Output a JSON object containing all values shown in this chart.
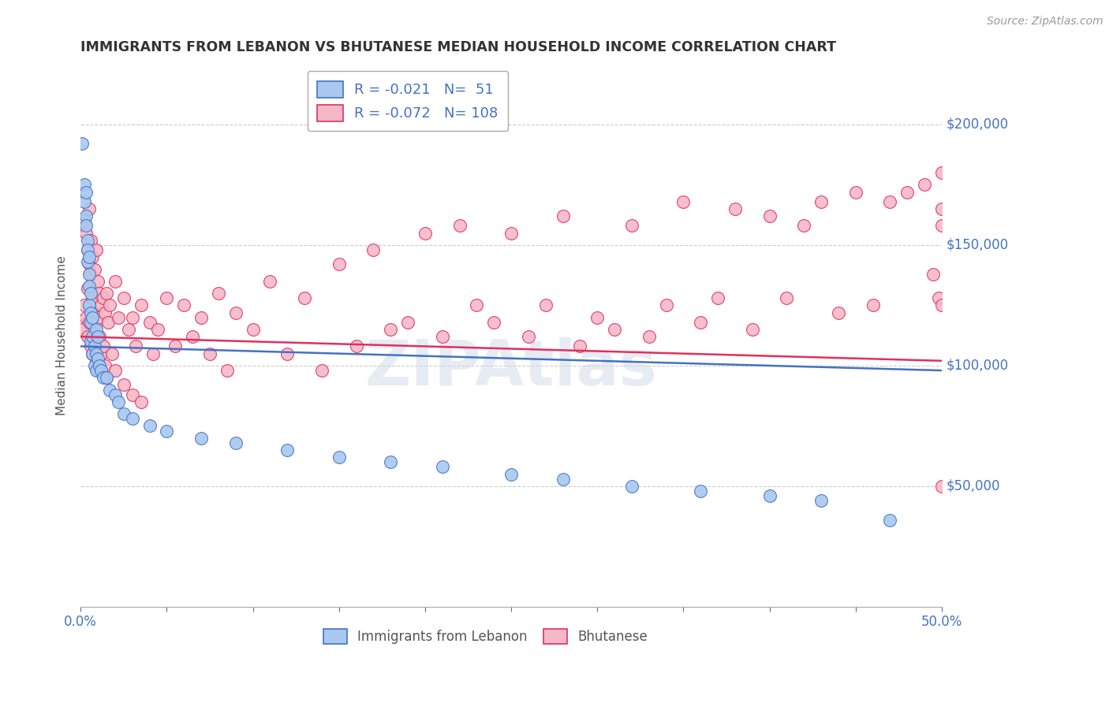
{
  "title": "IMMIGRANTS FROM LEBANON VS BHUTANESE MEDIAN HOUSEHOLD INCOME CORRELATION CHART",
  "source": "Source: ZipAtlas.com",
  "ylabel": "Median Household Income",
  "yticks": [
    50000,
    100000,
    150000,
    200000
  ],
  "ytick_labels": [
    "$50,000",
    "$100,000",
    "$150,000",
    "$200,000"
  ],
  "xlim": [
    0.0,
    0.5
  ],
  "ylim": [
    0,
    225000
  ],
  "legend_labels": [
    "Immigrants from Lebanon",
    "Bhutanese"
  ],
  "lebanon_R": -0.021,
  "lebanon_N": 51,
  "bhutan_R": -0.072,
  "bhutan_N": 108,
  "lebanon_color": "#a8c8f0",
  "bhutan_color": "#f5b8c8",
  "lebanon_line_color": "#4472c4",
  "bhutan_line_color": "#e03060",
  "background_color": "#ffffff",
  "grid_color": "#cccccc",
  "title_color": "#333333",
  "source_color": "#999999",
  "axis_label_color": "#4472c4",
  "watermark": "ZIPAtlas",
  "lebanon_x": [
    0.001,
    0.002,
    0.002,
    0.003,
    0.003,
    0.003,
    0.004,
    0.004,
    0.004,
    0.005,
    0.005,
    0.005,
    0.005,
    0.006,
    0.006,
    0.006,
    0.006,
    0.007,
    0.007,
    0.007,
    0.008,
    0.008,
    0.009,
    0.009,
    0.009,
    0.01,
    0.01,
    0.011,
    0.012,
    0.013,
    0.015,
    0.017,
    0.02,
    0.022,
    0.025,
    0.03,
    0.04,
    0.05,
    0.07,
    0.09,
    0.12,
    0.15,
    0.18,
    0.21,
    0.25,
    0.28,
    0.32,
    0.36,
    0.4,
    0.43,
    0.47
  ],
  "lebanon_y": [
    192000,
    175000,
    168000,
    172000,
    162000,
    158000,
    152000,
    148000,
    143000,
    145000,
    138000,
    133000,
    125000,
    130000,
    122000,
    118000,
    110000,
    120000,
    112000,
    105000,
    108000,
    100000,
    115000,
    105000,
    98000,
    112000,
    103000,
    100000,
    98000,
    95000,
    95000,
    90000,
    88000,
    85000,
    80000,
    78000,
    75000,
    73000,
    70000,
    68000,
    65000,
    62000,
    60000,
    58000,
    55000,
    53000,
    50000,
    48000,
    46000,
    44000,
    36000
  ],
  "bhutan_x": [
    0.001,
    0.002,
    0.002,
    0.003,
    0.003,
    0.004,
    0.004,
    0.004,
    0.005,
    0.005,
    0.005,
    0.006,
    0.006,
    0.006,
    0.007,
    0.007,
    0.007,
    0.008,
    0.008,
    0.009,
    0.009,
    0.009,
    0.01,
    0.01,
    0.01,
    0.011,
    0.011,
    0.012,
    0.012,
    0.013,
    0.013,
    0.014,
    0.014,
    0.015,
    0.015,
    0.016,
    0.017,
    0.018,
    0.02,
    0.02,
    0.022,
    0.025,
    0.025,
    0.028,
    0.03,
    0.03,
    0.032,
    0.035,
    0.035,
    0.04,
    0.042,
    0.045,
    0.05,
    0.055,
    0.06,
    0.065,
    0.07,
    0.075,
    0.08,
    0.085,
    0.09,
    0.1,
    0.11,
    0.12,
    0.13,
    0.14,
    0.15,
    0.16,
    0.17,
    0.18,
    0.19,
    0.2,
    0.21,
    0.22,
    0.23,
    0.24,
    0.25,
    0.26,
    0.27,
    0.28,
    0.29,
    0.3,
    0.31,
    0.32,
    0.33,
    0.34,
    0.35,
    0.36,
    0.37,
    0.38,
    0.39,
    0.4,
    0.41,
    0.42,
    0.43,
    0.44,
    0.45,
    0.46,
    0.47,
    0.48,
    0.49,
    0.495,
    0.498,
    0.5,
    0.5,
    0.5,
    0.5,
    0.5
  ],
  "bhutan_y": [
    115000,
    160000,
    125000,
    155000,
    120000,
    148000,
    132000,
    112000,
    165000,
    142000,
    118000,
    152000,
    138000,
    108000,
    145000,
    128000,
    105000,
    140000,
    122000,
    148000,
    118000,
    102000,
    135000,
    120000,
    98000,
    130000,
    112000,
    125000,
    105000,
    128000,
    108000,
    122000,
    100000,
    130000,
    95000,
    118000,
    125000,
    105000,
    135000,
    98000,
    120000,
    128000,
    92000,
    115000,
    120000,
    88000,
    108000,
    125000,
    85000,
    118000,
    105000,
    115000,
    128000,
    108000,
    125000,
    112000,
    120000,
    105000,
    130000,
    98000,
    122000,
    115000,
    135000,
    105000,
    128000,
    98000,
    142000,
    108000,
    148000,
    115000,
    118000,
    155000,
    112000,
    158000,
    125000,
    118000,
    155000,
    112000,
    125000,
    162000,
    108000,
    120000,
    115000,
    158000,
    112000,
    125000,
    168000,
    118000,
    128000,
    165000,
    115000,
    162000,
    128000,
    158000,
    168000,
    122000,
    172000,
    125000,
    168000,
    172000,
    175000,
    138000,
    128000,
    180000,
    165000,
    158000,
    125000,
    50000
  ]
}
